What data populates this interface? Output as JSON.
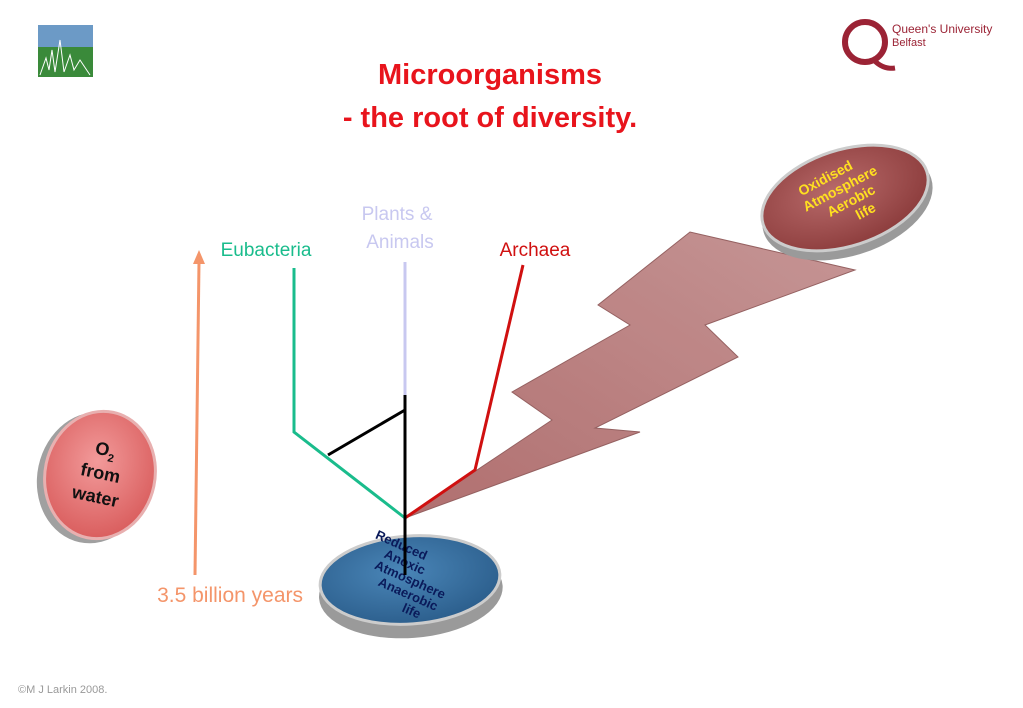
{
  "header": {
    "title": [
      "Microorganisms",
      "- the root of diversity."
    ]
  },
  "logo": {
    "name": [
      "Queen's University",
      "Belfast"
    ]
  },
  "tree": {
    "plants": [
      "Plants &",
      "Animals"
    ],
    "eubacteria": "Eubacteria",
    "archaea": "Archaea"
  },
  "discs": {
    "oxidised": [
      "Oxidised",
      "Atmosphere",
      "Aerobic",
      "life"
    ],
    "o2": {
      "base": "O",
      "sub": "2",
      "lines": [
        "from",
        "water"
      ]
    },
    "reduced": [
      "Reduced",
      "Anoxic",
      "Atmosphere",
      "Anaerobic",
      "life"
    ]
  },
  "time_axis": "3.5 billion years",
  "footer": "©M J Larkin 2008."
}
